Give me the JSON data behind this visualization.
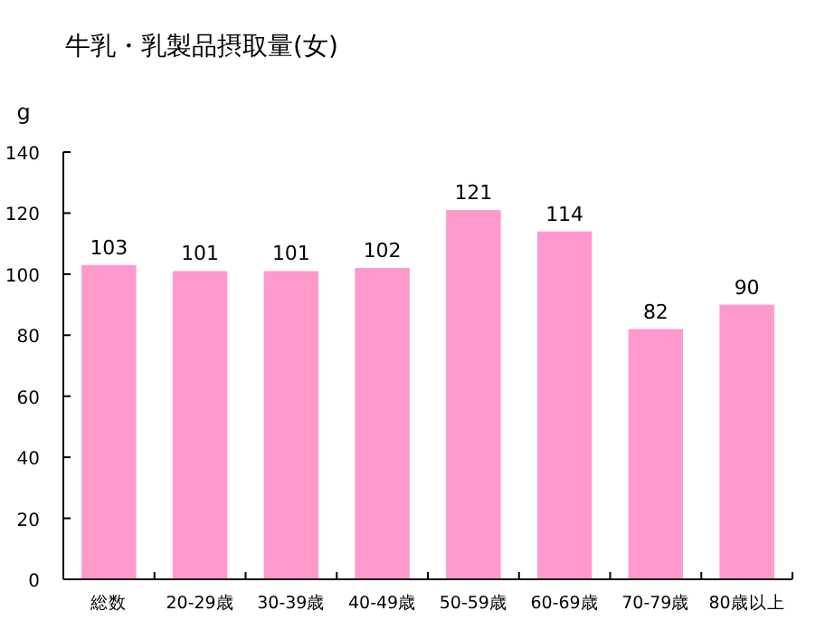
{
  "chart_data": {
    "type": "bar",
    "title": "牛乳・乳製品摂取量(女)",
    "ylabel": "g",
    "categories": [
      "総数",
      "20-29歳",
      "30-39歳",
      "40-49歳",
      "50-59歳",
      "60-69歳",
      "70-79歳",
      "80歳以上"
    ],
    "values": [
      103,
      101,
      101,
      102,
      121,
      114,
      82,
      90
    ],
    "color": "#ff99cc",
    "ylim": [
      0,
      140
    ],
    "yticks": [
      0,
      20,
      40,
      60,
      80,
      100,
      120,
      140
    ],
    "data_labels": true
  }
}
